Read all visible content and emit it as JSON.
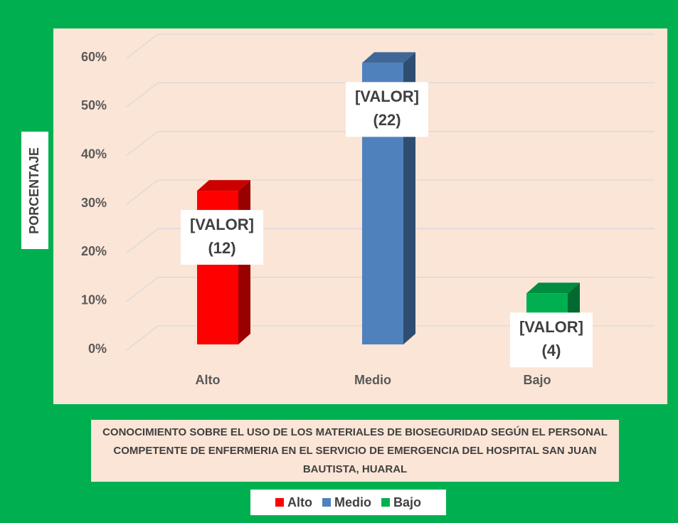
{
  "chart_data": {
    "type": "bar3d",
    "title": "CONOCIMIENTO SOBRE EL USO DE LOS MATERIALES DE BIOSEGURIDAD SEGÚN EL PERSONAL COMPETENTE DE ENFERMERIA EN EL SERVICIO DE EMERGENCIA DEL HOSPITAL SAN JUAN BAUTISTA, HUARAL",
    "y_label": "PORCENTAJE",
    "categories": [
      "Alto",
      "Medio",
      "Bajo"
    ],
    "values": [
      31.6,
      57.9,
      10.5
    ],
    "value_labels": [
      "[VALOR]",
      "[VALOR]",
      "[VALOR]"
    ],
    "counts": [
      12,
      22,
      4
    ],
    "count_labels": [
      "(12)",
      "(22)",
      "(4)"
    ],
    "colors": [
      "#ff0000",
      "#4f81bd",
      "#00b050"
    ],
    "ylim": [
      0,
      60
    ],
    "yticks": [
      {
        "value": 0,
        "label": "0%"
      },
      {
        "value": 10,
        "label": "10%"
      },
      {
        "value": 20,
        "label": "20%"
      },
      {
        "value": 30,
        "label": "30%"
      },
      {
        "value": 40,
        "label": "40%"
      },
      {
        "value": 50,
        "label": "50%"
      },
      {
        "value": 60,
        "label": "60%"
      }
    ],
    "grid": true,
    "legend": "bottom"
  }
}
